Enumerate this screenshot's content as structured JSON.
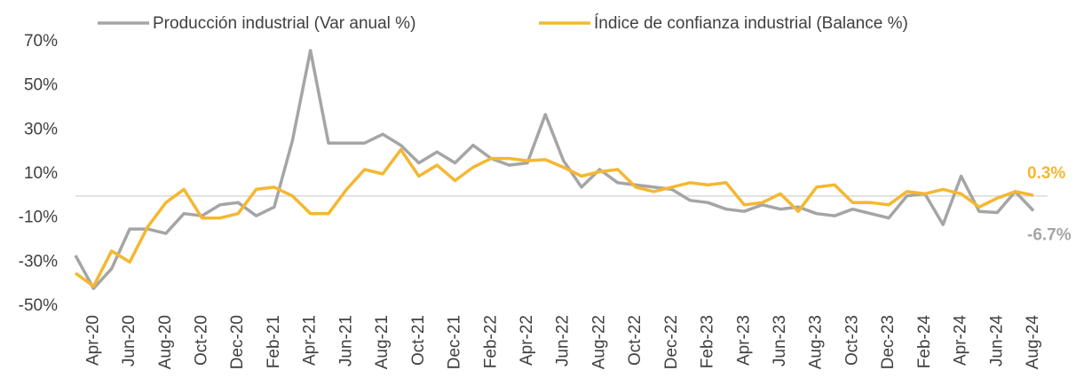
{
  "chart_data": {
    "type": "line",
    "categories": [
      null,
      "Apr-20",
      null,
      "Jun-20",
      null,
      "Aug-20",
      null,
      "Oct-20",
      null,
      "Dec-20",
      null,
      "Feb-21",
      null,
      "Apr-21",
      null,
      "Jun-21",
      null,
      "Aug-21",
      null,
      "Oct-21",
      null,
      "Dec-21",
      null,
      "Feb-22",
      null,
      "Apr-22",
      null,
      "Jun-22",
      null,
      "Aug-22",
      null,
      "Oct-22",
      null,
      "Dec-22",
      null,
      "Feb-23",
      null,
      "Apr-23",
      null,
      "Jun-23",
      null,
      "Aug-23",
      null,
      "Oct-23",
      null,
      "Dec-23",
      null,
      "Feb-24",
      null,
      "Apr-24",
      null,
      "Jun-24",
      null,
      "Aug-24"
    ],
    "series": [
      {
        "name": "Producción industrial (Var anual %)",
        "color": "#a5a5a5",
        "end_label": "-6.7%",
        "values": [
          -27,
          -42,
          -33,
          -15,
          -15,
          -17,
          -8,
          -9,
          -4,
          -3,
          -9,
          -5,
          25,
          66,
          24,
          24,
          24,
          28,
          23,
          15,
          20,
          15,
          23,
          17,
          14,
          15,
          37,
          16,
          4,
          12,
          6,
          5,
          4,
          3,
          -2,
          -3,
          -6,
          -7,
          -4,
          -6,
          -5,
          -8,
          -9,
          -6,
          -8,
          -10,
          0,
          1,
          -13,
          9,
          -7,
          -7.5,
          2,
          -6.7
        ]
      },
      {
        "name": "Índice de confianza industrial (Balance %)",
        "color": "#f5b731",
        "end_label": "0.3%",
        "values": [
          -35,
          -41,
          -25,
          -30,
          -14,
          -3,
          3,
          -10,
          -10,
          -8,
          3,
          4,
          0,
          -8,
          -8,
          3,
          12,
          10,
          21,
          9,
          14,
          7,
          13,
          17,
          17,
          16,
          16.5,
          13,
          9,
          11,
          12,
          4,
          2,
          4,
          6,
          5,
          6,
          -4,
          -3,
          1,
          -7,
          4,
          5,
          -3,
          -3,
          -4,
          2,
          1,
          3,
          1,
          -5,
          -1,
          2,
          0.3
        ]
      }
    ],
    "ylim": [
      -50,
      70
    ],
    "yticks": [
      {
        "value": -50,
        "label": "-50%"
      },
      {
        "value": -30,
        "label": "-30%"
      },
      {
        "value": -10,
        "label": "-10%"
      },
      {
        "value": 10,
        "label": "10%"
      },
      {
        "value": 30,
        "label": "30%"
      },
      {
        "value": 50,
        "label": "50%"
      },
      {
        "value": 70,
        "label": "70%"
      }
    ]
  }
}
